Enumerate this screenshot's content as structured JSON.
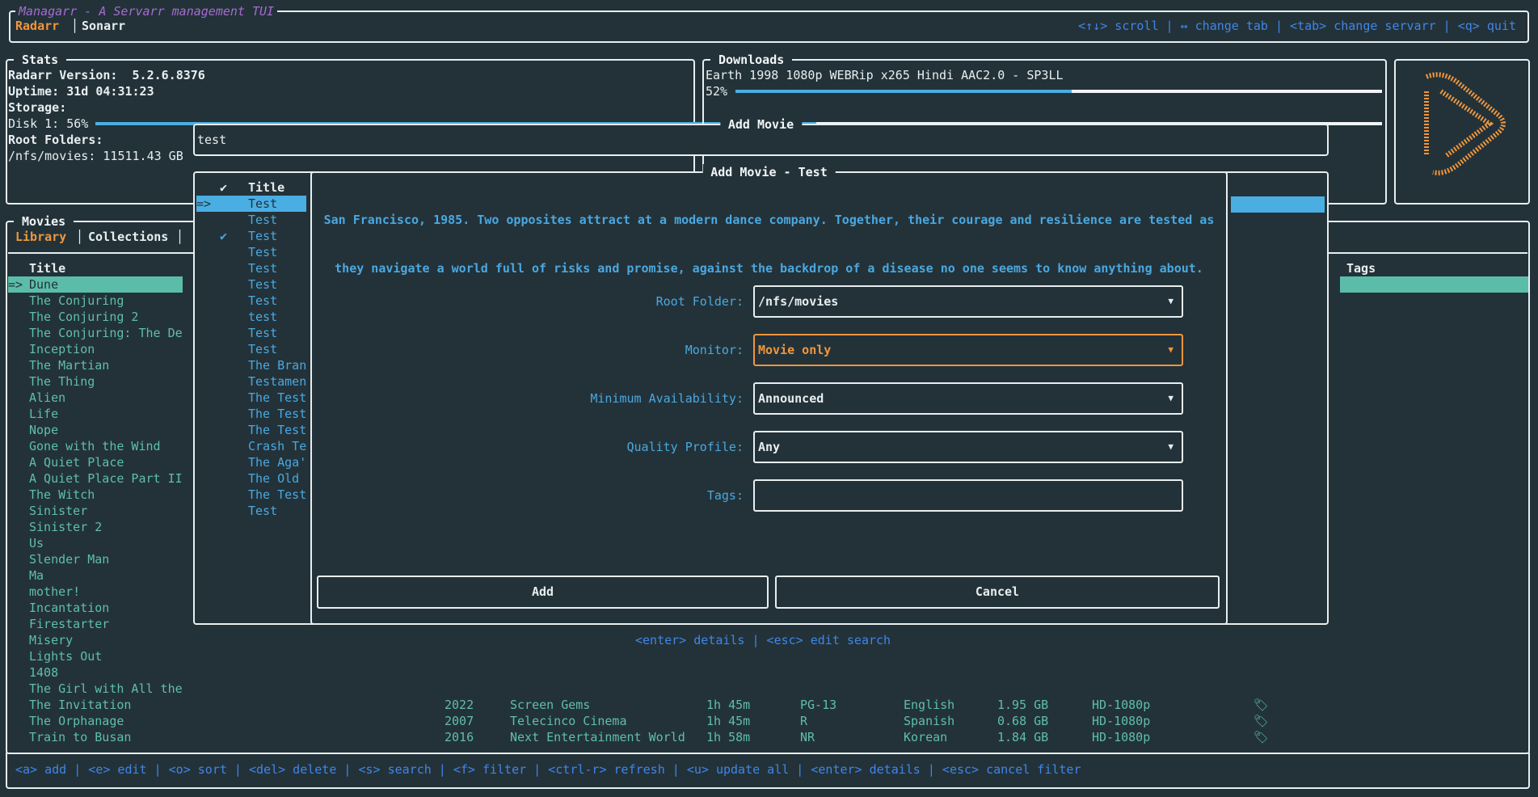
{
  "app_title": "Managarr - A Servarr management TUI",
  "servarr_tabs": [
    {
      "label": "Radarr",
      "active": true
    },
    {
      "label": "Sonarr",
      "active": false
    }
  ],
  "global_help": "<↑↓> scroll | ↔ change tab | <tab> change servarr | <q> quit",
  "stats": {
    "title": "Stats",
    "version_label": "Radarr Version:",
    "version": "5.2.6.8376",
    "uptime": "Uptime: 31d 04:31:23",
    "storage_label": "Storage:",
    "disk": "Disk 1: 56%",
    "disk_percent": 56,
    "root_folders_label": "Root Folders:",
    "root_folder": "/nfs/movies: 11511.43 GB"
  },
  "downloads": {
    "title": "Downloads",
    "items": [
      {
        "name": "Earth 1998 1080p WEBRip x265 Hindi AAC2.0 - SP3LL",
        "progress_label": "52%",
        "progress": 52
      }
    ]
  },
  "logo_icon": "radarr-logo",
  "movies": {
    "title": "Movies",
    "tabs": [
      "Library",
      "Collections"
    ],
    "header_title": "Title",
    "header_tags": "Tags",
    "selected_marker": "=>",
    "titles": [
      "Dune",
      "The Conjuring",
      "The Conjuring 2",
      "The Conjuring: The De",
      "Inception",
      "The Martian",
      "The Thing",
      "Alien",
      "Life",
      "Nope",
      "Gone with the Wind",
      "A Quiet Place",
      "A Quiet Place Part II",
      "The Witch",
      "Sinister",
      "Sinister 2",
      "Us",
      "Slender Man",
      "Ma",
      "mother!",
      "Incantation",
      "Firestarter",
      "Misery",
      "Lights Out",
      "1408",
      "The Girl with All the"
    ],
    "rows": [
      {
        "title": "The Invitation",
        "year": "2022",
        "studio": "Screen Gems",
        "runtime": "1h 45m",
        "rating": "PG-13",
        "language": "English",
        "size": "1.95 GB",
        "quality": "HD-1080p",
        "icon": "monitored-icon"
      },
      {
        "title": "The Orphanage",
        "year": "2007",
        "studio": "Telecinco Cinema",
        "runtime": "1h 45m",
        "rating": "R",
        "language": "Spanish",
        "size": "0.68 GB",
        "quality": "HD-1080p",
        "icon": "monitored-icon"
      },
      {
        "title": "Train to Busan",
        "year": "2016",
        "studio": "Next Entertainment World",
        "runtime": "1h 58m",
        "rating": "NR",
        "language": "Korean",
        "size": "1.84 GB",
        "quality": "HD-1080p",
        "icon": "monitored-icon"
      }
    ]
  },
  "footer_help": "<a> add | <e> edit | <o> sort | <del> delete | <s> search | <f> filter | <ctrl-r> refresh | <u> update all | <enter> details | <esc> cancel filter",
  "add_movie": {
    "title": "Add Movie",
    "search_value": "test",
    "results": {
      "check_header": "✔",
      "title_header": "Title",
      "selected_marker": "=>",
      "items": [
        {
          "title": "Test",
          "checked": false
        },
        {
          "title": "Test",
          "checked": false
        },
        {
          "title": "Test",
          "checked": true
        },
        {
          "title": "Test",
          "checked": false
        },
        {
          "title": "Test",
          "checked": false
        },
        {
          "title": "Test",
          "checked": false
        },
        {
          "title": "Test",
          "checked": false
        },
        {
          "title": "test",
          "checked": false
        },
        {
          "title": "Test",
          "checked": false
        },
        {
          "title": "Test",
          "checked": false
        },
        {
          "title": "The Bran",
          "checked": false
        },
        {
          "title": "Testamen",
          "checked": false
        },
        {
          "title": "The Test",
          "checked": false
        },
        {
          "title": "The Test",
          "checked": false
        },
        {
          "title": "The Test",
          "checked": false
        },
        {
          "title": "Crash Te",
          "checked": false
        },
        {
          "title": "The Aga'",
          "checked": false
        },
        {
          "title": "The Old",
          "checked": false
        },
        {
          "title": "The Test",
          "checked": false
        },
        {
          "title": "Test",
          "checked": false
        }
      ]
    },
    "help": "<enter> details | <esc> edit search"
  },
  "add_movie_modal": {
    "title": "Add Movie - Test",
    "overview_lines": [
      "San Francisco, 1985. Two opposites attract at a modern dance company. Together, their courage and resilience are tested as",
      "they navigate a world full of risks and promise, against the backdrop of a disease no one seems to know anything about."
    ],
    "fields": [
      {
        "label": "Root Folder:",
        "value": "/nfs/movies",
        "dropdown": true,
        "focused": false
      },
      {
        "label": "Monitor:",
        "value": "Movie only",
        "dropdown": true,
        "focused": true
      },
      {
        "label": "Minimum Availability:",
        "value": "Announced",
        "dropdown": true,
        "focused": false
      },
      {
        "label": "Quality Profile:",
        "value": "Any",
        "dropdown": true,
        "focused": false
      },
      {
        "label": "Tags:",
        "value": "",
        "dropdown": false,
        "focused": false
      }
    ],
    "dropdown_glyph": "▼",
    "add_label": "Add",
    "cancel_label": "Cancel"
  },
  "colors": {
    "background": "#233239",
    "teal": "#5fbfa9",
    "blue": "#4aa8e0",
    "orange": "#f0963c",
    "purple": "#a66bd0",
    "help": "#3f86e8"
  }
}
